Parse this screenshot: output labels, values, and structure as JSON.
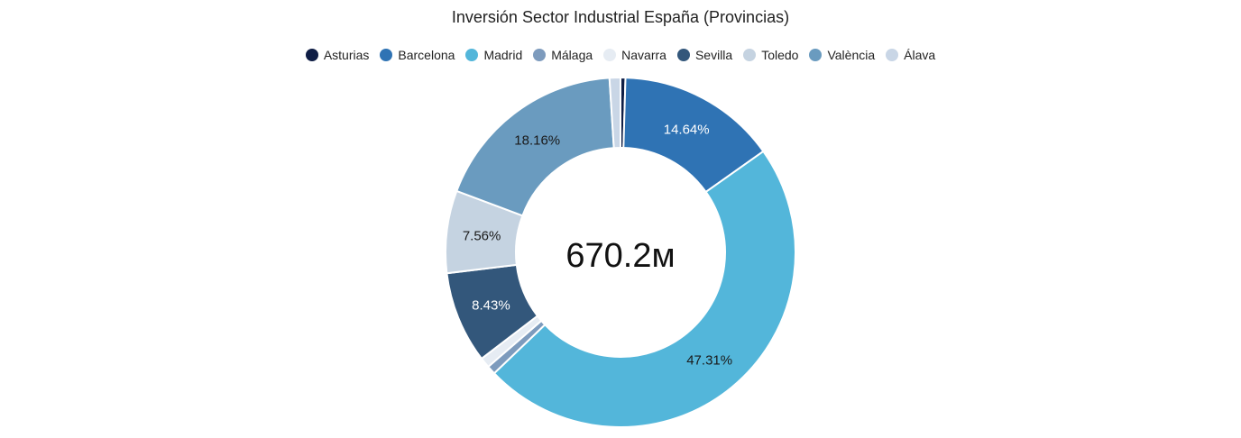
{
  "chart_data": {
    "type": "pie",
    "subtype": "donut",
    "title": "Inversión Sector Industrial España (Provincias)",
    "center_label": "670.2м",
    "legend_position": "top",
    "slices": [
      {
        "label": "Asturias",
        "percent": 0.45,
        "color": "#0f1e45",
        "value_label": "",
        "label_color": "#ffffff"
      },
      {
        "label": "Barcelona",
        "percent": 14.64,
        "color": "#2f73b4",
        "value_label": "14.64%",
        "label_color": "#ffffff"
      },
      {
        "label": "Madrid",
        "percent": 47.31,
        "color": "#53b6da",
        "value_label": "47.31%",
        "label_color": "#1a1a1a"
      },
      {
        "label": "Málaga",
        "percent": 0.8,
        "color": "#7d9bbd",
        "value_label": "",
        "label_color": "#1a1a1a"
      },
      {
        "label": "Navarra",
        "percent": 0.95,
        "color": "#e6ecf3",
        "value_label": "",
        "label_color": "#1a1a1a"
      },
      {
        "label": "Sevilla",
        "percent": 8.43,
        "color": "#33577b",
        "value_label": "8.43%",
        "label_color": "#ffffff"
      },
      {
        "label": "Toledo",
        "percent": 7.56,
        "color": "#c5d3e1",
        "value_label": "7.56%",
        "label_color": "#1a1a1a"
      },
      {
        "label": "València",
        "percent": 18.16,
        "color": "#6a9bbf",
        "value_label": "18.16%",
        "label_color": "#1a1a1a"
      },
      {
        "label": "Álava",
        "percent": 1.0,
        "color": "#c9d6e6",
        "value_label": "",
        "label_color": "#1a1a1a"
      }
    ]
  }
}
